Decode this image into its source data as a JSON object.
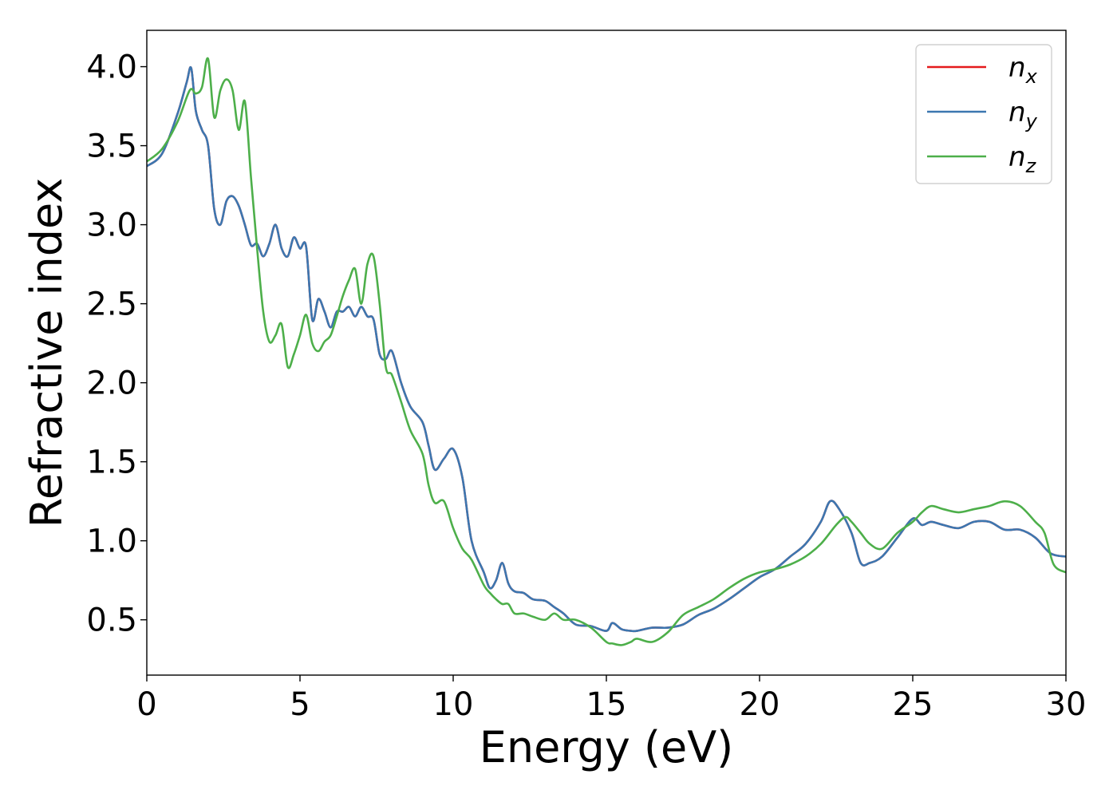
{
  "chart_data": {
    "type": "line",
    "xlabel": "Energy (eV)",
    "ylabel": "Refractive index",
    "xlim": [
      0,
      30
    ],
    "ylim": [
      0.15,
      4.23
    ],
    "xticks": [
      0,
      5,
      10,
      15,
      20,
      25,
      30
    ],
    "xtick_labels": [
      "0",
      "5",
      "10",
      "15",
      "20",
      "25",
      "30"
    ],
    "yticks": [
      0.5,
      1.0,
      1.5,
      2.0,
      2.5,
      3.0,
      3.5,
      4.0
    ],
    "ytick_labels": [
      "0.5",
      "1.0",
      "1.5",
      "2.0",
      "2.5",
      "3.0",
      "3.5",
      "4.0"
    ],
    "grid": false,
    "legend_position": "top-right",
    "series": [
      {
        "id": "nx",
        "name_base": "n",
        "name_sub": "x",
        "color": "#e41a1c",
        "x": [
          0.0,
          0.5,
          1.0,
          1.3,
          1.45,
          1.6,
          1.8,
          2.0,
          2.2,
          2.4,
          2.6,
          2.8,
          3.0,
          3.2,
          3.4,
          3.6,
          3.8,
          4.0,
          4.2,
          4.4,
          4.6,
          4.8,
          5.0,
          5.2,
          5.4,
          5.6,
          5.8,
          6.0,
          6.2,
          6.4,
          6.6,
          6.8,
          7.0,
          7.2,
          7.4,
          7.6,
          7.8,
          8.0,
          8.3,
          8.6,
          9.0,
          9.2,
          9.4,
          9.7,
          10.0,
          10.3,
          10.6,
          11.0,
          11.2,
          11.4,
          11.6,
          11.8,
          12.0,
          12.3,
          12.6,
          13.0,
          13.3,
          13.6,
          14.0,
          14.5,
          15.0,
          15.2,
          15.5,
          15.8,
          16.0,
          16.5,
          17.0,
          17.5,
          18.0,
          18.5,
          19.0,
          19.5,
          20.0,
          20.5,
          21.0,
          21.5,
          22.0,
          22.3,
          22.6,
          23.0,
          23.3,
          23.6,
          24.0,
          24.5,
          25.0,
          25.3,
          25.6,
          26.0,
          26.5,
          27.0,
          27.5,
          28.0,
          28.5,
          29.0,
          29.5,
          30.0
        ],
        "y": [
          3.37,
          3.45,
          3.7,
          3.9,
          3.99,
          3.72,
          3.6,
          3.5,
          3.1,
          3.0,
          3.15,
          3.18,
          3.12,
          3.0,
          2.87,
          2.88,
          2.8,
          2.88,
          3.0,
          2.85,
          2.8,
          2.92,
          2.85,
          2.86,
          2.4,
          2.53,
          2.45,
          2.35,
          2.45,
          2.45,
          2.48,
          2.42,
          2.48,
          2.42,
          2.4,
          2.18,
          2.15,
          2.2,
          2.0,
          1.85,
          1.75,
          1.6,
          1.45,
          1.52,
          1.58,
          1.4,
          1.0,
          0.8,
          0.7,
          0.75,
          0.86,
          0.73,
          0.68,
          0.67,
          0.63,
          0.62,
          0.58,
          0.54,
          0.47,
          0.46,
          0.43,
          0.48,
          0.44,
          0.43,
          0.43,
          0.45,
          0.45,
          0.47,
          0.53,
          0.57,
          0.63,
          0.7,
          0.77,
          0.82,
          0.9,
          0.98,
          1.12,
          1.25,
          1.2,
          1.05,
          0.86,
          0.86,
          0.9,
          1.02,
          1.14,
          1.1,
          1.12,
          1.1,
          1.08,
          1.12,
          1.12,
          1.07,
          1.07,
          1.02,
          0.92,
          0.9
        ]
      },
      {
        "id": "ny",
        "name_base": "n",
        "name_sub": "y",
        "color": "#3c77b0",
        "x": [
          0.0,
          0.5,
          1.0,
          1.3,
          1.45,
          1.6,
          1.8,
          2.0,
          2.2,
          2.4,
          2.6,
          2.8,
          3.0,
          3.2,
          3.4,
          3.6,
          3.8,
          4.0,
          4.2,
          4.4,
          4.6,
          4.8,
          5.0,
          5.2,
          5.4,
          5.6,
          5.8,
          6.0,
          6.2,
          6.4,
          6.6,
          6.8,
          7.0,
          7.2,
          7.4,
          7.6,
          7.8,
          8.0,
          8.3,
          8.6,
          9.0,
          9.2,
          9.4,
          9.7,
          10.0,
          10.3,
          10.6,
          11.0,
          11.2,
          11.4,
          11.6,
          11.8,
          12.0,
          12.3,
          12.6,
          13.0,
          13.3,
          13.6,
          14.0,
          14.5,
          15.0,
          15.2,
          15.5,
          15.8,
          16.0,
          16.5,
          17.0,
          17.5,
          18.0,
          18.5,
          19.0,
          19.5,
          20.0,
          20.5,
          21.0,
          21.5,
          22.0,
          22.3,
          22.6,
          23.0,
          23.3,
          23.6,
          24.0,
          24.5,
          25.0,
          25.3,
          25.6,
          26.0,
          26.5,
          27.0,
          27.5,
          28.0,
          28.5,
          29.0,
          29.5,
          30.0
        ],
        "y": [
          3.37,
          3.45,
          3.7,
          3.9,
          3.99,
          3.72,
          3.6,
          3.5,
          3.1,
          3.0,
          3.15,
          3.18,
          3.12,
          3.0,
          2.87,
          2.88,
          2.8,
          2.88,
          3.0,
          2.85,
          2.8,
          2.92,
          2.85,
          2.86,
          2.4,
          2.53,
          2.45,
          2.35,
          2.45,
          2.45,
          2.48,
          2.42,
          2.48,
          2.42,
          2.4,
          2.18,
          2.15,
          2.2,
          2.0,
          1.85,
          1.75,
          1.6,
          1.45,
          1.52,
          1.58,
          1.4,
          1.0,
          0.8,
          0.7,
          0.75,
          0.86,
          0.73,
          0.68,
          0.67,
          0.63,
          0.62,
          0.58,
          0.54,
          0.47,
          0.46,
          0.43,
          0.48,
          0.44,
          0.43,
          0.43,
          0.45,
          0.45,
          0.47,
          0.53,
          0.57,
          0.63,
          0.7,
          0.77,
          0.82,
          0.9,
          0.98,
          1.12,
          1.25,
          1.2,
          1.05,
          0.86,
          0.86,
          0.9,
          1.02,
          1.14,
          1.1,
          1.12,
          1.1,
          1.08,
          1.12,
          1.12,
          1.07,
          1.07,
          1.02,
          0.92,
          0.9
        ]
      },
      {
        "id": "nz",
        "name_base": "n",
        "name_sub": "z",
        "color": "#4daf4a",
        "x": [
          0.0,
          0.5,
          1.0,
          1.4,
          1.6,
          1.8,
          2.0,
          2.2,
          2.4,
          2.6,
          2.8,
          3.0,
          3.2,
          3.4,
          3.6,
          3.8,
          4.0,
          4.2,
          4.4,
          4.6,
          4.8,
          5.0,
          5.2,
          5.4,
          5.6,
          5.8,
          6.0,
          6.2,
          6.4,
          6.6,
          6.8,
          7.0,
          7.2,
          7.4,
          7.6,
          7.8,
          8.0,
          8.3,
          8.6,
          9.0,
          9.2,
          9.4,
          9.7,
          10.0,
          10.3,
          10.6,
          11.0,
          11.2,
          11.4,
          11.6,
          11.8,
          12.0,
          12.3,
          12.6,
          13.0,
          13.3,
          13.6,
          14.0,
          14.5,
          15.0,
          15.2,
          15.5,
          15.8,
          16.0,
          16.5,
          17.0,
          17.5,
          18.0,
          18.5,
          19.0,
          19.5,
          20.0,
          20.5,
          21.0,
          21.5,
          22.0,
          22.5,
          22.8,
          23.0,
          23.3,
          23.6,
          24.0,
          24.5,
          25.0,
          25.3,
          25.6,
          26.0,
          26.5,
          27.0,
          27.5,
          28.0,
          28.5,
          29.0,
          29.3,
          29.6,
          30.0
        ],
        "y": [
          3.4,
          3.48,
          3.65,
          3.85,
          3.83,
          3.87,
          4.05,
          3.68,
          3.85,
          3.92,
          3.85,
          3.6,
          3.78,
          3.3,
          2.85,
          2.45,
          2.26,
          2.3,
          2.37,
          2.1,
          2.18,
          2.3,
          2.43,
          2.25,
          2.2,
          2.26,
          2.3,
          2.42,
          2.55,
          2.65,
          2.72,
          2.5,
          2.75,
          2.8,
          2.5,
          2.1,
          2.05,
          1.88,
          1.7,
          1.55,
          1.35,
          1.24,
          1.25,
          1.08,
          0.95,
          0.88,
          0.72,
          0.67,
          0.63,
          0.6,
          0.6,
          0.54,
          0.54,
          0.52,
          0.5,
          0.54,
          0.5,
          0.5,
          0.45,
          0.36,
          0.35,
          0.34,
          0.36,
          0.38,
          0.36,
          0.42,
          0.53,
          0.58,
          0.63,
          0.7,
          0.76,
          0.8,
          0.82,
          0.85,
          0.9,
          0.98,
          1.1,
          1.15,
          1.12,
          1.05,
          0.98,
          0.95,
          1.05,
          1.12,
          1.18,
          1.22,
          1.2,
          1.18,
          1.2,
          1.22,
          1.25,
          1.22,
          1.12,
          1.05,
          0.85,
          0.8
        ]
      }
    ]
  }
}
